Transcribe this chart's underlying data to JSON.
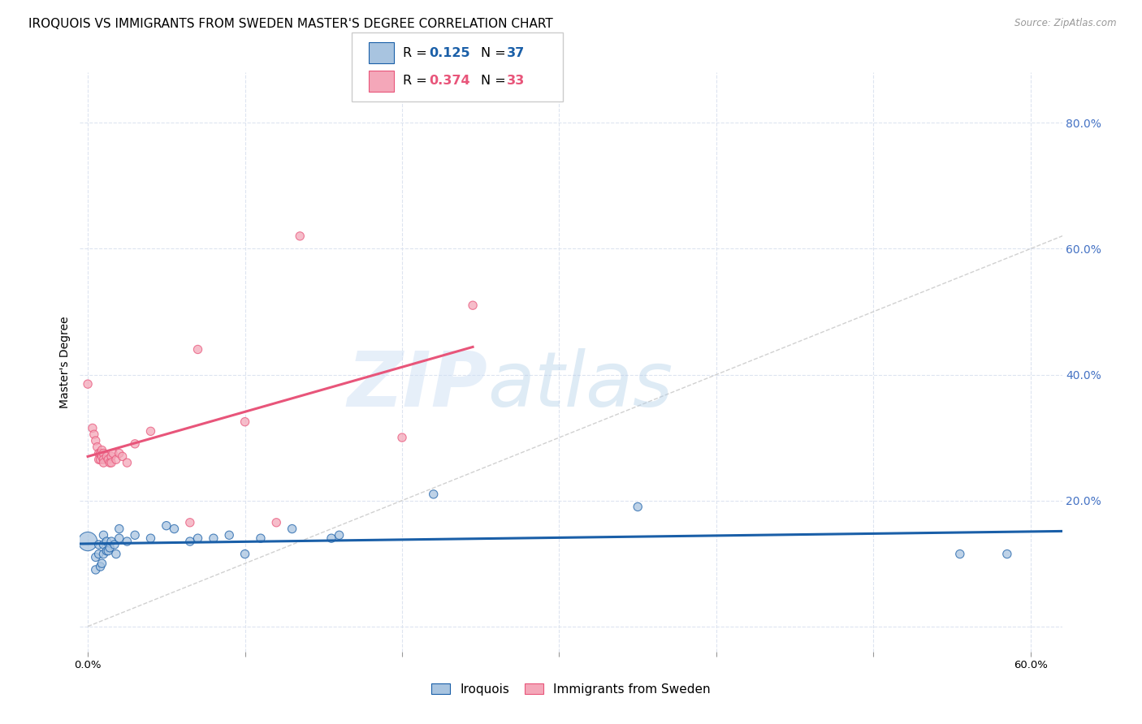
{
  "title": "IROQUOIS VS IMMIGRANTS FROM SWEDEN MASTER'S DEGREE CORRELATION CHART",
  "source": "Source: ZipAtlas.com",
  "ylabel": "Master's Degree",
  "ytick_values": [
    0.0,
    0.2,
    0.4,
    0.6,
    0.8
  ],
  "xlim": [
    -0.005,
    0.62
  ],
  "ylim": [
    -0.04,
    0.88
  ],
  "legend_r1": "0.125",
  "legend_n1": "37",
  "legend_r2": "0.374",
  "legend_n2": "33",
  "color_iroquois": "#a8c4e0",
  "color_sweden": "#f4a7b9",
  "line_color_iroquois": "#1a5fa8",
  "line_color_sweden": "#e8557a",
  "diagonal_color": "#cccccc",
  "watermark_zip": "ZIP",
  "watermark_atlas": "atlas",
  "iroquois_x": [
    0.0,
    0.005,
    0.005,
    0.007,
    0.007,
    0.008,
    0.009,
    0.01,
    0.01,
    0.01,
    0.012,
    0.012,
    0.013,
    0.014,
    0.015,
    0.017,
    0.018,
    0.02,
    0.02,
    0.025,
    0.03,
    0.04,
    0.05,
    0.055,
    0.065,
    0.07,
    0.08,
    0.09,
    0.1,
    0.11,
    0.13,
    0.155,
    0.16,
    0.22,
    0.35,
    0.555,
    0.585
  ],
  "iroquois_y": [
    0.135,
    0.09,
    0.11,
    0.115,
    0.13,
    0.095,
    0.1,
    0.115,
    0.13,
    0.145,
    0.12,
    0.135,
    0.12,
    0.125,
    0.135,
    0.13,
    0.115,
    0.14,
    0.155,
    0.135,
    0.145,
    0.14,
    0.16,
    0.155,
    0.135,
    0.14,
    0.14,
    0.145,
    0.115,
    0.14,
    0.155,
    0.14,
    0.145,
    0.21,
    0.19,
    0.115,
    0.115
  ],
  "iroquois_size": [
    280,
    55,
    55,
    55,
    55,
    55,
    55,
    55,
    55,
    55,
    55,
    55,
    55,
    55,
    55,
    55,
    55,
    55,
    55,
    55,
    55,
    55,
    55,
    55,
    55,
    55,
    55,
    55,
    55,
    55,
    55,
    55,
    55,
    55,
    55,
    55,
    55
  ],
  "sweden_x": [
    0.0,
    0.003,
    0.004,
    0.005,
    0.006,
    0.007,
    0.007,
    0.008,
    0.008,
    0.009,
    0.009,
    0.01,
    0.01,
    0.01,
    0.012,
    0.013,
    0.014,
    0.015,
    0.015,
    0.016,
    0.018,
    0.02,
    0.022,
    0.025,
    0.03,
    0.04,
    0.065,
    0.07,
    0.1,
    0.12,
    0.135,
    0.2,
    0.245
  ],
  "sweden_y": [
    0.385,
    0.315,
    0.305,
    0.295,
    0.285,
    0.275,
    0.265,
    0.275,
    0.265,
    0.28,
    0.27,
    0.275,
    0.265,
    0.26,
    0.27,
    0.265,
    0.26,
    0.27,
    0.26,
    0.275,
    0.265,
    0.275,
    0.27,
    0.26,
    0.29,
    0.31,
    0.165,
    0.44,
    0.325,
    0.165,
    0.62,
    0.3,
    0.51
  ],
  "sweden_size": [
    55,
    55,
    55,
    55,
    55,
    55,
    55,
    55,
    55,
    55,
    55,
    55,
    55,
    55,
    55,
    55,
    55,
    55,
    55,
    55,
    55,
    55,
    55,
    55,
    55,
    55,
    55,
    55,
    55,
    55,
    55,
    55,
    55
  ],
  "background_color": "#ffffff",
  "grid_color": "#dde4f0",
  "title_fontsize": 11,
  "axis_label_fontsize": 10,
  "right_tick_color": "#4472c4"
}
